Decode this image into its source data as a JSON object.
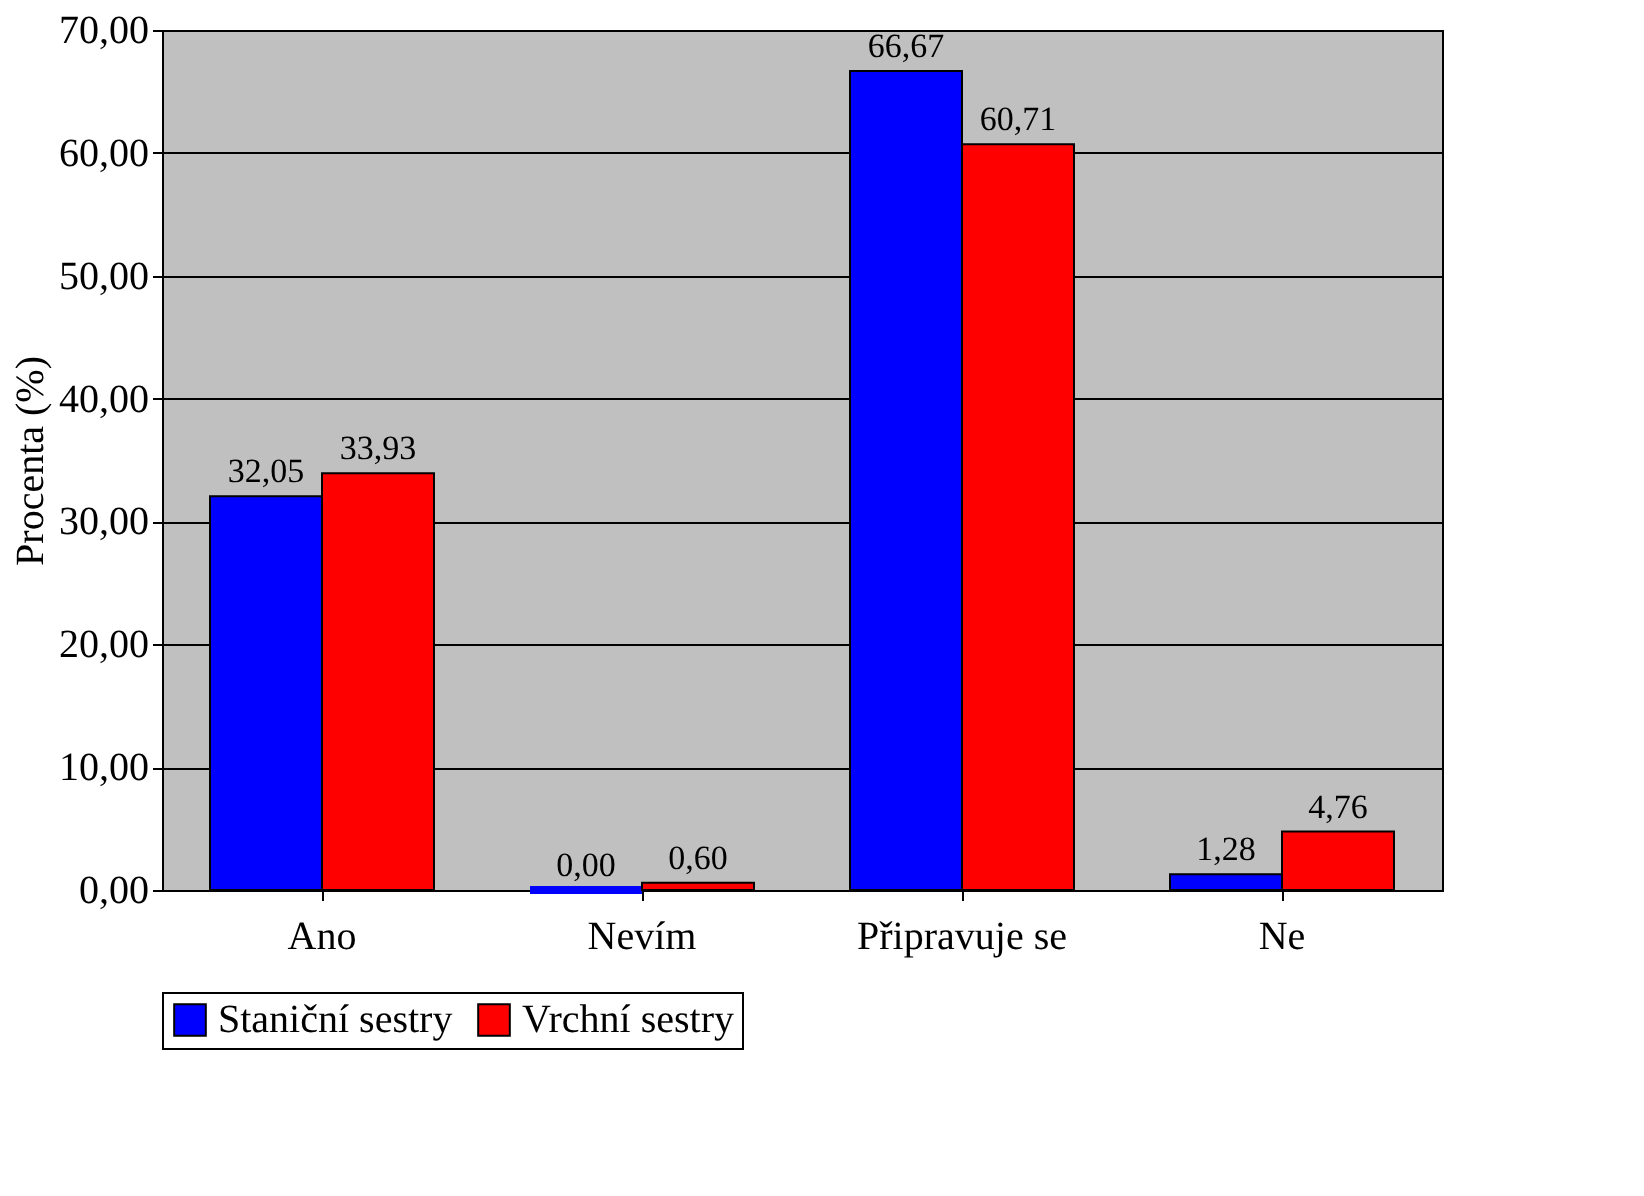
{
  "chart_data": {
    "type": "bar",
    "ylabel": "Procenta (%)",
    "categories": [
      "Ano",
      "Nevím",
      "Připravuje se",
      "Ne"
    ],
    "series": [
      {
        "name": "Staniční sestry",
        "color": "#0000ff",
        "values": [
          32.05,
          0.0,
          66.67,
          1.28
        ],
        "value_labels": [
          "32,05",
          "0,00",
          "66,67",
          "1,28"
        ]
      },
      {
        "name": "Vrchní sestry",
        "color": "#ff0000",
        "values": [
          33.93,
          0.6,
          60.71,
          4.76
        ],
        "value_labels": [
          "33,93",
          "0,60",
          "60,71",
          "4,76"
        ]
      }
    ],
    "ylim": [
      0,
      70
    ],
    "yticks": [
      {
        "value": 0,
        "label": "0,00"
      },
      {
        "value": 10,
        "label": "10,00"
      },
      {
        "value": 20,
        "label": "20,00"
      },
      {
        "value": 30,
        "label": "30,00"
      },
      {
        "value": 40,
        "label": "40,00"
      },
      {
        "value": 50,
        "label": "50,00"
      },
      {
        "value": 60,
        "label": "60,00"
      },
      {
        "value": 70,
        "label": "70,00"
      }
    ],
    "grid": "y",
    "legend": "bottom"
  }
}
